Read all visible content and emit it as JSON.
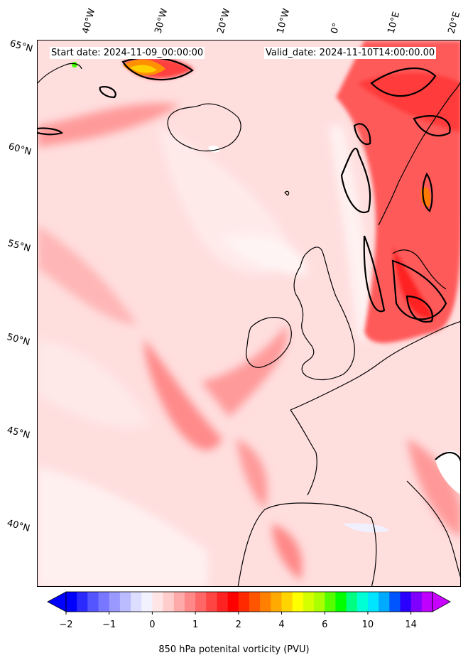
{
  "header": {
    "start_date": "Start date: 2024-11-09_00:00:00",
    "valid_date": "Valid_date: 2024-11-10T14:00:00.00"
  },
  "axes": {
    "lat_labels": [
      "65°N",
      "60°N",
      "55°N",
      "50°N",
      "45°N",
      "40°N"
    ],
    "lon_labels": [
      "40°W",
      "30°W",
      "20°W",
      "10°W",
      "0°",
      "10°E",
      "20°E"
    ]
  },
  "colorbar": {
    "label": "850 hPa potenital vorticity (PVU)",
    "ticks": [
      "−2",
      "−1",
      "0",
      "1",
      "2",
      "4",
      "6",
      "10",
      "14"
    ],
    "colors": [
      "#0000ff",
      "#2a2aff",
      "#5555ff",
      "#7777ff",
      "#9999ff",
      "#bbbbff",
      "#ddddff",
      "#f2f2ff",
      "#ffe5e5",
      "#ffcccc",
      "#ffaaaa",
      "#ff8888",
      "#ff6666",
      "#ff4444",
      "#ff2222",
      "#ff0000",
      "#ff2a00",
      "#ff5500",
      "#ff8000",
      "#ffaa00",
      "#ffd400",
      "#ffff00",
      "#d4ff00",
      "#aaff00",
      "#55ff00",
      "#00ff00",
      "#00ff80",
      "#00ffd4",
      "#00e5ff",
      "#00aaff",
      "#0055ff",
      "#2a00ff",
      "#8000ff",
      "#c000ff"
    ],
    "under_color": "#0000ff",
    "over_color": "#c800ff"
  },
  "style": {
    "background_pv": "#ffe0e0",
    "contour_color": "#000000",
    "coastline_color": "#000000"
  }
}
